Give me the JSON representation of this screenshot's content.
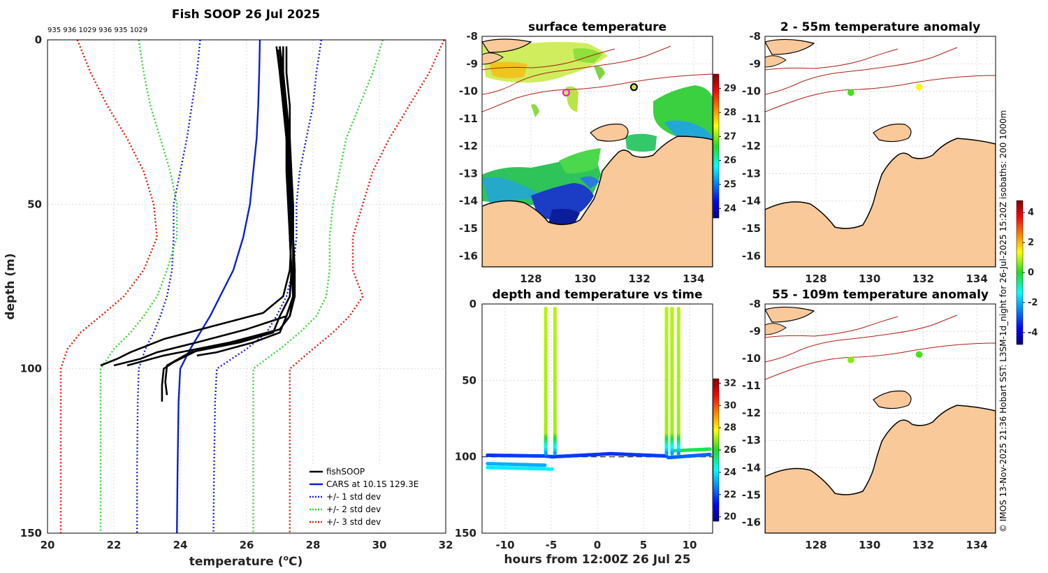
{
  "figure_title": "Fish SOOP 26 Jul 2025",
  "drop_ids": "935 936 1029 936 935 1029",
  "credit": "© IMOS 13-Nov-2025 21:36 Hobart SST: L3SM-1d_night for 26-Jul-2025 15:20Z isobaths: 200  1000m",
  "colors": {
    "fishsoop": "#000000",
    "cars": "#0a1fd6",
    "std1": "#1a1ad8",
    "std2": "#2fd62f",
    "std3": "#e01a0a",
    "land": "#f9c99a",
    "isobath": "#b01c10"
  },
  "chart_data": [
    {
      "id": "profile",
      "type": "line",
      "title": "",
      "xlabel_main": "temperature (",
      "xlabel_sup": "o",
      "xlabel_end": "C)",
      "ylabel": "depth (m)",
      "xlim": [
        20,
        32
      ],
      "ylim": [
        0,
        150
      ],
      "y_reversed": true,
      "xticks": [
        20,
        22,
        24,
        26,
        28,
        30,
        32
      ],
      "yticks": [
        0,
        50,
        100,
        150
      ],
      "legend": [
        "fishSOOP",
        "CARS at 10.1S 129.3E",
        "+/- 1 std dev",
        "+/- 2 std dev",
        "+/- 3 std dev"
      ],
      "series": [
        {
          "name": "CARS",
          "x": [
            26.4,
            26.38,
            26.35,
            26.3,
            26.2,
            26.1,
            25.9,
            25.6,
            25.2,
            24.9,
            24.6,
            24.3,
            24.0,
            23.95,
            23.92,
            23.9
          ],
          "y": [
            0,
            10,
            20,
            30,
            40,
            50,
            60,
            70,
            78,
            84,
            89,
            94,
            100,
            110,
            130,
            150
          ]
        },
        {
          "name": "-1 std",
          "x": [
            24.6,
            24.5,
            24.35,
            24.2,
            24.0,
            23.8,
            23.8,
            23.75,
            23.6,
            23.4,
            23.2,
            22.95,
            22.75,
            22.72,
            22.7,
            22.7
          ],
          "y": [
            0,
            10,
            20,
            30,
            40,
            50,
            60,
            70,
            78,
            84,
            89,
            94,
            100,
            110,
            130,
            150
          ]
        },
        {
          "name": "+1 std",
          "x": [
            28.25,
            28.1,
            28.0,
            27.8,
            27.6,
            27.5,
            27.5,
            27.4,
            27.2,
            26.9,
            26.6,
            26.0,
            25.1,
            25.05,
            25.02,
            25.0
          ],
          "y": [
            0,
            10,
            20,
            30,
            40,
            50,
            60,
            70,
            78,
            84,
            89,
            94,
            100,
            110,
            130,
            150
          ]
        },
        {
          "name": "-2 std",
          "x": [
            22.75,
            22.9,
            23.1,
            23.4,
            23.7,
            23.9,
            23.9,
            23.6,
            23.3,
            22.9,
            22.5,
            22.0,
            21.6,
            21.6,
            21.6,
            21.6
          ],
          "y": [
            0,
            10,
            20,
            30,
            40,
            50,
            60,
            70,
            78,
            84,
            89,
            94,
            100,
            110,
            130,
            150
          ]
        },
        {
          "name": "+2 std",
          "x": [
            30.1,
            29.8,
            29.4,
            29.0,
            28.8,
            28.6,
            28.5,
            28.5,
            28.4,
            28.1,
            27.6,
            27.0,
            26.2,
            26.2,
            26.2,
            26.2
          ],
          "y": [
            0,
            10,
            20,
            30,
            40,
            50,
            60,
            70,
            78,
            84,
            89,
            94,
            100,
            110,
            130,
            150
          ]
        },
        {
          "name": "-3 std",
          "x": [
            20.9,
            21.3,
            21.8,
            22.4,
            22.9,
            23.2,
            23.3,
            22.9,
            22.3,
            21.6,
            21.0,
            20.6,
            20.4,
            20.4,
            20.4,
            20.4
          ],
          "y": [
            0,
            10,
            20,
            30,
            40,
            50,
            60,
            70,
            78,
            84,
            89,
            94,
            100,
            110,
            130,
            150
          ]
        },
        {
          "name": "+3 std",
          "x": [
            31.95,
            31.5,
            30.9,
            30.3,
            29.8,
            29.5,
            29.2,
            29.2,
            29.5,
            29.1,
            28.6,
            28.0,
            27.3,
            27.3,
            27.3,
            27.3
          ],
          "y": [
            0,
            10,
            20,
            30,
            40,
            50,
            60,
            70,
            78,
            84,
            89,
            94,
            100,
            110,
            130,
            150
          ]
        },
        {
          "name": "fishSOOP 1",
          "x": [
            27.0,
            27.1,
            27.2,
            27.25,
            27.3,
            27.3,
            27.35,
            27.3,
            27.1,
            26.5,
            25.0,
            23.5,
            22.5,
            22.1,
            21.6
          ],
          "y": [
            2,
            10,
            20,
            30,
            40,
            50,
            60,
            70,
            78,
            83,
            87,
            91,
            95,
            97,
            99
          ]
        },
        {
          "name": "fishSOOP 2",
          "x": [
            27.2,
            27.2,
            27.3,
            27.3,
            27.35,
            27.4,
            27.4,
            27.45,
            27.4,
            27.2,
            26.0,
            24.5,
            23.3,
            22.8,
            22.0
          ],
          "y": [
            2,
            10,
            20,
            30,
            40,
            50,
            60,
            70,
            78,
            84,
            88,
            92,
            95,
            97,
            99
          ]
        },
        {
          "name": "fishSOOP 3",
          "x": [
            26.9,
            27.0,
            27.1,
            27.2,
            27.2,
            27.25,
            27.3,
            27.35,
            27.4,
            27.3,
            27.0,
            26.0,
            24.6,
            23.8,
            23.5,
            23.45,
            23.45
          ],
          "y": [
            2,
            10,
            20,
            30,
            40,
            50,
            60,
            70,
            78,
            84,
            88,
            91,
            94,
            98,
            100,
            105,
            110
          ]
        },
        {
          "name": "fishSOOP 4",
          "x": [
            27.1,
            27.1,
            27.2,
            27.3,
            27.3,
            27.4,
            27.4,
            27.45,
            27.45,
            27.3,
            27.0,
            25.5,
            23.5,
            22.4
          ],
          "y": [
            2,
            10,
            20,
            30,
            40,
            50,
            60,
            70,
            78,
            84,
            88,
            92,
            96,
            99
          ]
        },
        {
          "name": "fishSOOP 5",
          "x": [
            27.0,
            27.05,
            27.15,
            27.2,
            27.25,
            27.3,
            27.3,
            27.35,
            27.3,
            27.0,
            26.8,
            25.8,
            24.3,
            23.6,
            23.55,
            23.6
          ],
          "y": [
            2,
            10,
            20,
            30,
            40,
            50,
            60,
            70,
            78,
            84,
            89,
            92,
            95,
            99,
            104,
            108
          ]
        },
        {
          "name": "fishSOOP 6",
          "x": [
            26.95,
            27.0,
            27.1,
            27.2,
            27.3,
            27.35,
            27.4,
            27.4,
            27.4,
            27.2,
            27.0,
            26.2,
            25.1,
            24.5
          ],
          "y": [
            3,
            10,
            20,
            30,
            40,
            50,
            60,
            70,
            78,
            84,
            89,
            92,
            95,
            96
          ]
        }
      ]
    },
    {
      "id": "sst-map",
      "type": "heatmap",
      "title": "surface temperature",
      "xlim": [
        126.2,
        134.7
      ],
      "ylim": [
        -16.4,
        -8
      ],
      "xticks": [
        128,
        130,
        132,
        134
      ],
      "yticks": [
        -8,
        -9,
        -10,
        -11,
        -12,
        -13,
        -14,
        -15,
        -16
      ],
      "colorbar_ticks": [
        24,
        25,
        26,
        27,
        28,
        29
      ],
      "colorbar_range": [
        23.6,
        29.6
      ],
      "stations": [
        {
          "lon": 129.3,
          "lat": -10.05
        },
        {
          "lon": 131.8,
          "lat": -9.85
        }
      ]
    },
    {
      "id": "time-series",
      "type": "scatter",
      "title": "depth and temperature vs time",
      "xlabel": "hours from 12:00Z 26 Jul 25",
      "ylabel": "",
      "xlim": [
        -12.5,
        12.5
      ],
      "ylim": [
        0,
        150
      ],
      "y_reversed": true,
      "xticks": [
        -10,
        -5,
        0,
        5,
        10
      ],
      "yticks": [
        0,
        50,
        100,
        150
      ],
      "colorbar_ticks": [
        20,
        22,
        24,
        26,
        28,
        30,
        32
      ],
      "colorbar_range": [
        19.6,
        32.4
      ],
      "dashed_bottom_depth": 100
    },
    {
      "id": "anom-shallow",
      "type": "heatmap",
      "title": "2 - 55m temperature anomaly",
      "xlim": [
        126.1,
        134.7
      ],
      "ylim": [
        -16.4,
        -8
      ],
      "xticks": [
        128,
        130,
        132,
        134
      ],
      "yticks": [
        -8,
        -9,
        -10,
        -11,
        -12,
        -13,
        -14,
        -15,
        -16
      ],
      "points": [
        {
          "lon": 129.3,
          "lat": -10.05,
          "value": 0.2
        },
        {
          "lon": 131.85,
          "lat": -9.85,
          "value": 1.4
        }
      ]
    },
    {
      "id": "anom-deep",
      "type": "heatmap",
      "title": "55 - 109m temperature anomaly",
      "xlim": [
        126.1,
        134.7
      ],
      "ylim": [
        -16.4,
        -8
      ],
      "xticks": [
        128,
        130,
        132,
        134
      ],
      "yticks": [
        -8,
        -9,
        -10,
        -11,
        -12,
        -13,
        -14,
        -15,
        -16
      ],
      "points": [
        {
          "lon": 129.3,
          "lat": -10.05,
          "value": 0.6
        },
        {
          "lon": 131.85,
          "lat": -9.85,
          "value": 0.2
        }
      ]
    },
    {
      "id": "anomaly-colorbar",
      "type": "heatmap",
      "colorbar_ticks": [
        -4,
        -2,
        0,
        2,
        4
      ],
      "colorbar_range": [
        -4.8,
        4.8
      ]
    }
  ]
}
